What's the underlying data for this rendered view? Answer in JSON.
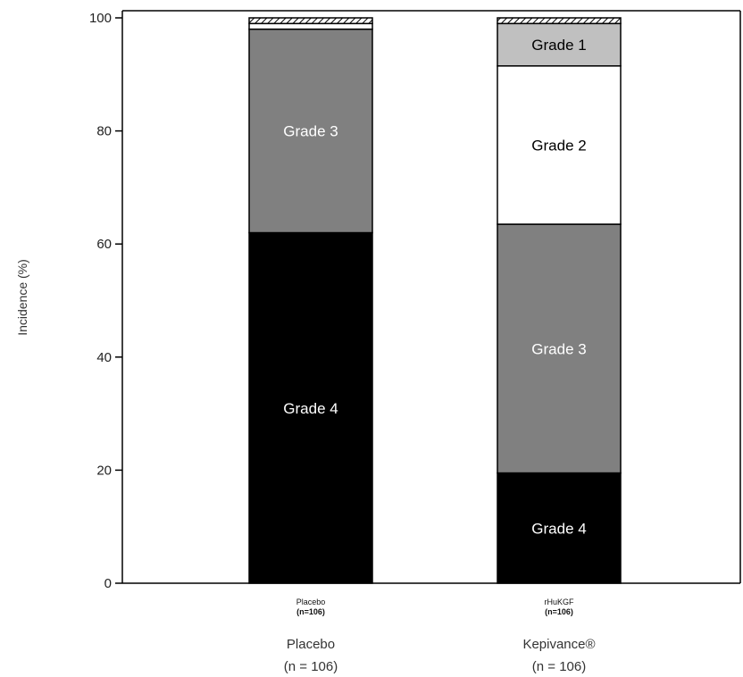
{
  "chart_data": {
    "type": "bar",
    "stacked": true,
    "ylabel": "Incidence (%)",
    "ylim": [
      0,
      100
    ],
    "yticks": [
      0,
      20,
      40,
      60,
      80,
      100
    ],
    "grid": false,
    "categories": [
      {
        "small_name": "Placebo",
        "small_n": "(n=106)",
        "name": "Placebo",
        "n": "(n = 106)",
        "segments": [
          {
            "label": "Grade 4",
            "value": 62,
            "color": "#000000",
            "text_color": "#ffffff"
          },
          {
            "label": "Grade 3",
            "value": 36,
            "color": "#808080",
            "text_color": "#ffffff"
          },
          {
            "label": "",
            "value": 1,
            "color": "#ffffff",
            "text_color": "#000000"
          },
          {
            "label": "",
            "value": 1,
            "color": "hatch",
            "text_color": "#000000"
          }
        ]
      },
      {
        "small_name": "rHuKGF",
        "small_n": "(n=106)",
        "name": "Kepivance®",
        "n": "(n = 106)",
        "segments": [
          {
            "label": "Grade 4",
            "value": 19.5,
            "color": "#000000",
            "text_color": "#ffffff"
          },
          {
            "label": "Grade 3",
            "value": 44,
            "color": "#808080",
            "text_color": "#ffffff"
          },
          {
            "label": "Grade 2",
            "value": 28,
            "color": "#ffffff",
            "text_color": "#000000"
          },
          {
            "label": "Grade 1",
            "value": 7.5,
            "color": "#c0c0c0",
            "text_color": "#000000"
          },
          {
            "label": "",
            "value": 1,
            "color": "hatch",
            "text_color": "#000000"
          }
        ]
      }
    ]
  }
}
